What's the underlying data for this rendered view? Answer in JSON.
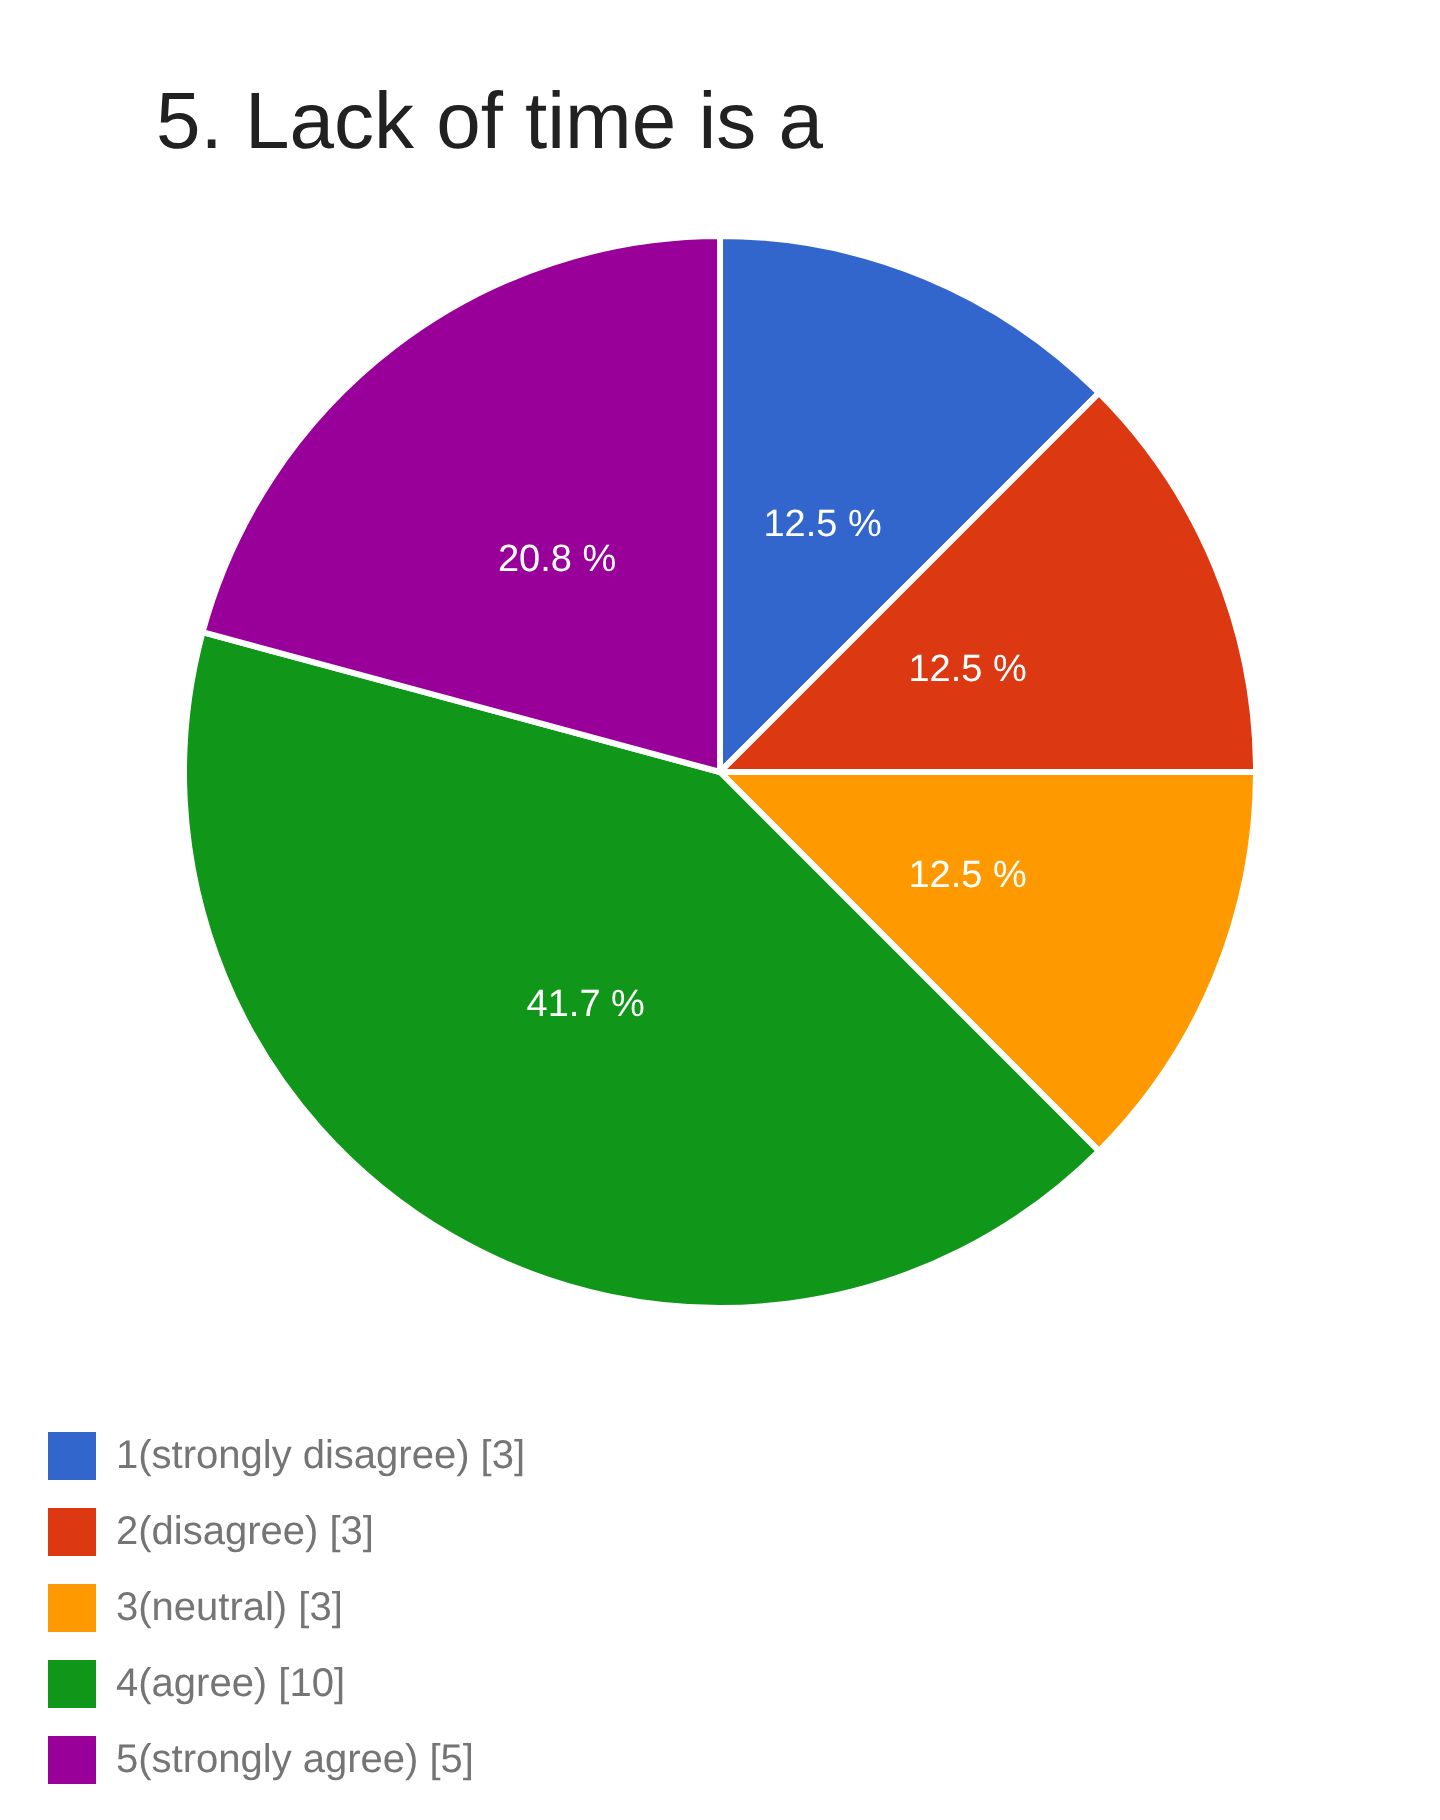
{
  "chart_data": {
    "type": "pie",
    "title": "5. Lack of time is a",
    "categories": [
      "1(strongly disagree)  [3]",
      "2(disagree)  [3]",
      "3(neutral)  [3]",
      "4(agree)  [10]",
      "5(strongly agree)  [5]"
    ],
    "values": [
      12.5,
      12.5,
      12.5,
      41.7,
      20.8
    ],
    "value_labels": [
      "12.5 %",
      "12.5 %",
      "12.5 %",
      "41.7 %",
      "20.8 %"
    ],
    "colors": [
      "#3366cc",
      "#dc3912",
      "#ff9900",
      "#109618",
      "#990099"
    ],
    "legend": "bottom left"
  }
}
